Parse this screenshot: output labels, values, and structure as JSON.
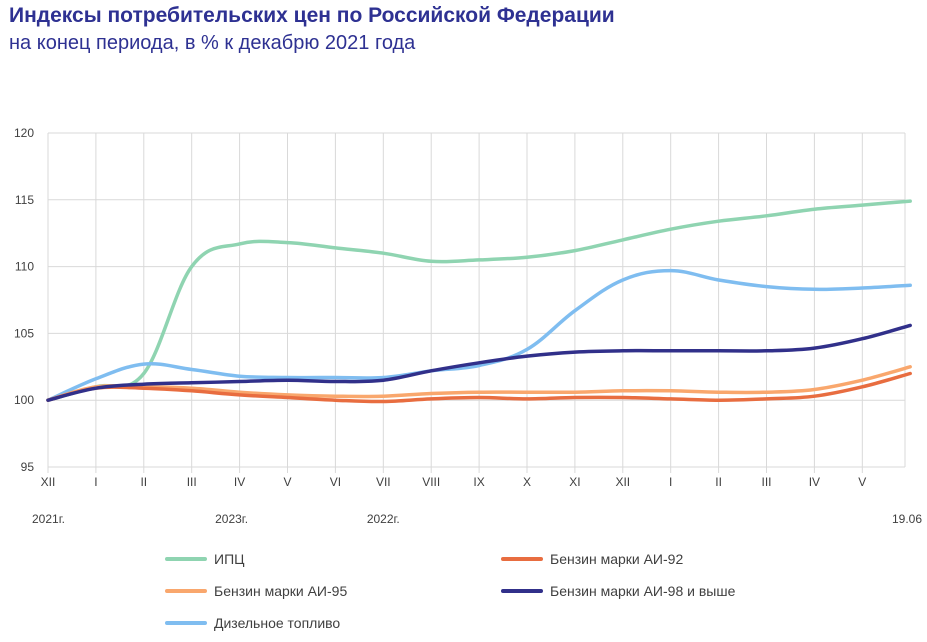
{
  "header": {
    "title": "Индексы потребительских цен по Российской Федерации",
    "subtitle": "на конец периода, в % к декабрю 2021 года"
  },
  "chart_data": {
    "type": "line",
    "title": "Индексы потребительских цен по Российской Федерации",
    "subtitle": "на конец периода, в % к декабрю 2021 года",
    "xlabel": "",
    "ylabel": "",
    "ylim": [
      95,
      120
    ],
    "yticks": [
      95,
      100,
      105,
      110,
      115,
      120
    ],
    "grid": true,
    "legend_position": "bottom",
    "categories": [
      "XII",
      "I",
      "II",
      "III",
      "IV",
      "V",
      "VI",
      "VII",
      "VIII",
      "IX",
      "X",
      "XI",
      "XII",
      "I",
      "II",
      "III",
      "IV",
      "V",
      "19.06"
    ],
    "tick_labels": [
      "XII",
      "I",
      "II",
      "III",
      "IV",
      "V",
      "VI",
      "VII",
      "VIII",
      "IX",
      "X",
      "XI",
      "XII",
      "I",
      "II",
      "III",
      "IV",
      "V"
    ],
    "year_labels": [
      {
        "text": "2021г.",
        "at": "XII"
      },
      {
        "text": "2022г.",
        "at": "VII"
      },
      {
        "text": "2023г.",
        "at": "IV"
      },
      {
        "text": "19.06",
        "at": "19.06"
      }
    ],
    "series": [
      {
        "name": "ИПЦ",
        "color": "#8fd4b1",
        "values": [
          100.0,
          101.0,
          102.0,
          110.0,
          111.7,
          111.8,
          111.4,
          111.0,
          110.4,
          110.5,
          110.7,
          111.2,
          112.0,
          112.8,
          113.4,
          113.8,
          114.3,
          114.6,
          114.9
        ]
      },
      {
        "name": "Бензин марки АИ-92",
        "color": "#e86d40",
        "values": [
          100.0,
          100.9,
          100.9,
          100.7,
          100.4,
          100.2,
          100.0,
          99.9,
          100.1,
          100.2,
          100.1,
          100.2,
          100.2,
          100.1,
          100.0,
          100.1,
          100.3,
          101.0,
          102.0
        ]
      },
      {
        "name": "Бензин марки АИ-95",
        "color": "#f9a76d",
        "values": [
          100.0,
          101.0,
          101.0,
          100.9,
          100.6,
          100.4,
          100.3,
          100.3,
          100.5,
          100.6,
          100.6,
          100.6,
          100.7,
          100.7,
          100.6,
          100.6,
          100.8,
          101.5,
          102.5
        ]
      },
      {
        "name": "Бензин марки АИ-98 и выше",
        "color": "#31308a",
        "values": [
          100.0,
          100.9,
          101.2,
          101.3,
          101.4,
          101.5,
          101.4,
          101.5,
          102.2,
          102.8,
          103.3,
          103.6,
          103.7,
          103.7,
          103.7,
          103.7,
          103.9,
          104.6,
          105.6
        ]
      },
      {
        "name": "Дизельное топливо",
        "color": "#7fbdf0",
        "values": [
          100.0,
          101.6,
          102.7,
          102.3,
          101.8,
          101.7,
          101.7,
          101.7,
          102.2,
          102.6,
          103.8,
          106.7,
          109.0,
          109.7,
          109.0,
          108.5,
          108.3,
          108.4,
          108.6
        ]
      }
    ]
  },
  "legend": {
    "items": [
      {
        "label": "ИПЦ",
        "color": "#8fd4b1"
      },
      {
        "label": "Бензин марки АИ-92",
        "color": "#e86d40"
      },
      {
        "label": "Бензин марки АИ-95",
        "color": "#f9a76d"
      },
      {
        "label": "Бензин марки АИ-98 и выше",
        "color": "#31308a"
      },
      {
        "label": "Дизельное топливо",
        "color": "#7fbdf0"
      }
    ]
  }
}
